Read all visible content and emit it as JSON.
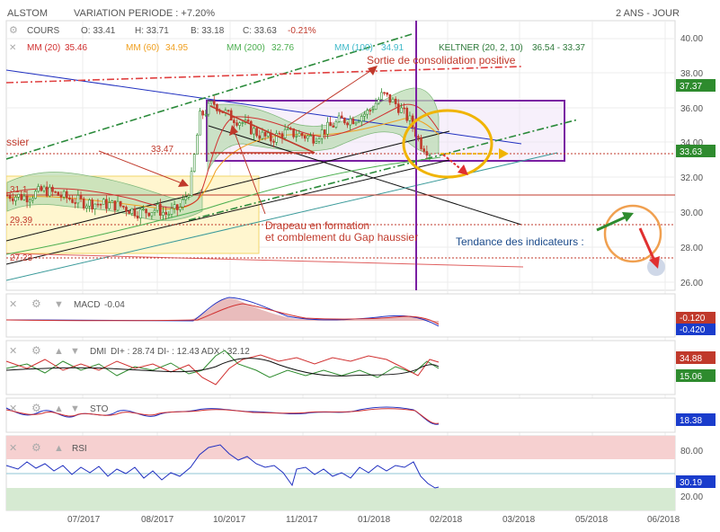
{
  "header": {
    "symbol": "ALSTOM",
    "variation": "VARIATION PERIODE : +7.20%",
    "period": "2 ANS - JOUR"
  },
  "legend_price": {
    "cours": "COURS",
    "open": "O: 33.41",
    "high": "H: 33.71",
    "low": "B: 33.18",
    "close": "C: 33.63",
    "change": "-0.21%",
    "mm20": "MM (20)",
    "mm20_val": "35.46",
    "mm60": "MM (60)",
    "mm60_val": "34.95",
    "mm200": "MM (200)",
    "mm200_val": "32.76",
    "mm100": "MM (100)",
    "mm100_val": "34.91",
    "keltner": "KELTNER (20, 2, 10)",
    "keltner_val": "36.54 - 33.37"
  },
  "annotations": {
    "sortie": "Sortie de consolidation positive",
    "drapeau1": "Drapeau en formation",
    "drapeau2": "et comblement du Gap haussier",
    "tendance": "Tendance des indicateurs :",
    "left_cut": "ssier",
    "level_3347": "33.47",
    "level_31": "31.1",
    "level_2939": "29.39",
    "level_2723": "27.23"
  },
  "price_badges": {
    "upper": "37.37",
    "current": "33.63"
  },
  "macd": {
    "label": "MACD",
    "value": "-0.04",
    "badge1": "-0.120",
    "badge2": "-0.420"
  },
  "dmi": {
    "label": "DMI",
    "text": "DI+ : 28.74 DI- : 12.43 ADX : 32.12",
    "badge1": "34.88",
    "badge2": "15.06"
  },
  "sto": {
    "label": "STO",
    "badge": "18.38"
  },
  "rsi": {
    "label": "RSI",
    "badge": "30.19",
    "tick_high": "80.00",
    "tick_low": "20.00"
  },
  "colors": {
    "up": "#2e8b2e",
    "down": "#c0392b",
    "purple": "#7a1fa2",
    "green_dash": "#2a8a3a",
    "red_dash": "#e04040",
    "yellow": "#f0b400",
    "orange": "#f0a050",
    "badge_green": "#2e8b2e",
    "badge_red": "#c0392b",
    "badge_blue": "#1a3ccc"
  },
  "chart_data": {
    "type": "candlestick",
    "y_ticks": [
      "40.00",
      "38.00",
      "36.00",
      "34.00",
      "32.00",
      "30.00",
      "28.00",
      "26.00"
    ],
    "ylim": [
      25.5,
      41
    ],
    "x_ticks": [
      "07/2017",
      "08/2017",
      "10/2017",
      "11/2017",
      "01/2018",
      "02/2018",
      "03/2018",
      "05/2018",
      "06/2018"
    ],
    "price_anchors": [
      [
        0,
        31.0
      ],
      [
        0.04,
        30.9
      ],
      [
        0.08,
        31.3
      ],
      [
        0.12,
        30.9
      ],
      [
        0.16,
        30.6
      ],
      [
        0.2,
        30.5
      ],
      [
        0.24,
        30.4
      ],
      [
        0.28,
        30.0
      ],
      [
        0.32,
        30.2
      ],
      [
        0.34,
        29.9
      ],
      [
        0.37,
        30.3
      ],
      [
        0.39,
        31.5
      ],
      [
        0.41,
        35.5
      ],
      [
        0.44,
        36.3
      ],
      [
        0.47,
        35.6
      ],
      [
        0.5,
        35.2
      ],
      [
        0.53,
        34.6
      ],
      [
        0.56,
        34.2
      ],
      [
        0.59,
        34.6
      ],
      [
        0.62,
        34.5
      ],
      [
        0.65,
        34.3
      ],
      [
        0.68,
        34.8
      ],
      [
        0.71,
        35.3
      ],
      [
        0.74,
        35.4
      ],
      [
        0.77,
        35.8
      ],
      [
        0.8,
        36.8
      ],
      [
        0.83,
        36.2
      ],
      [
        0.86,
        35.2
      ],
      [
        0.88,
        34.0
      ],
      [
        0.9,
        33.5
      ]
    ]
  }
}
